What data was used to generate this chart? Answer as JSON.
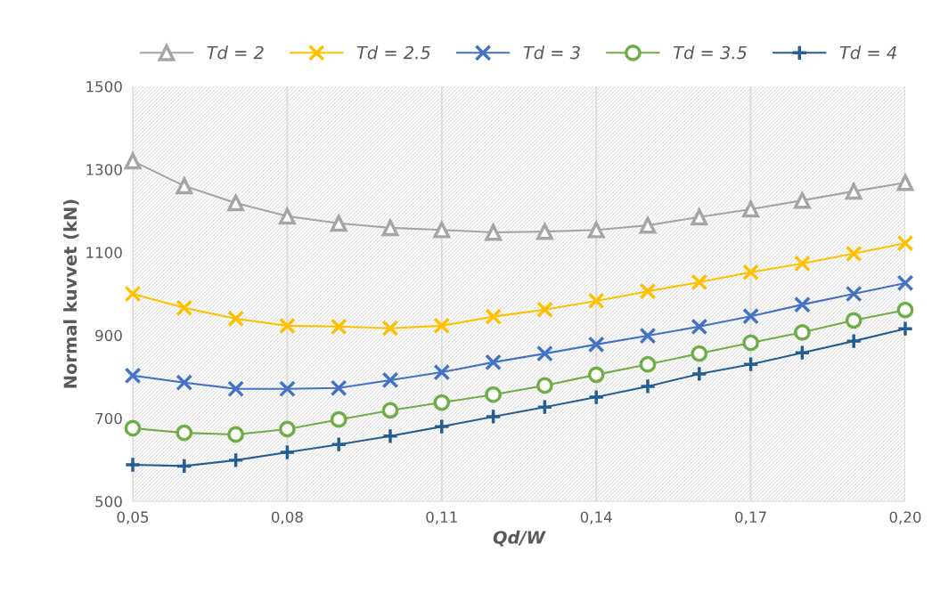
{
  "chart_data": {
    "type": "line",
    "xlabel": "Qd/W",
    "ylabel": "Normal kuvvet (kN)",
    "x": [
      0.05,
      0.06,
      0.07,
      0.08,
      0.09,
      0.1,
      0.11,
      0.12,
      0.13,
      0.14,
      0.15,
      0.16,
      0.17,
      0.18,
      0.19,
      0.2
    ],
    "series": [
      {
        "name": "Td = 2",
        "color": "#a5a5a5",
        "marker": "triangle",
        "values": [
          1320,
          1260,
          1219,
          1187,
          1170,
          1159,
          1154,
          1148,
          1150,
          1154,
          1165,
          1185,
          1204,
          1225,
          1247,
          1268
        ]
      },
      {
        "name": "Td = 2.5",
        "color": "#ffc000",
        "marker": "cross",
        "values": [
          1000,
          966,
          940,
          923,
          921,
          917,
          923,
          945,
          962,
          983,
          1006,
          1028,
          1052,
          1073,
          1097,
          1122
        ]
      },
      {
        "name": "Td = 3",
        "color": "#4472c4",
        "marker": "cross",
        "values": [
          803,
          786,
          771,
          771,
          773,
          792,
          811,
          835,
          856,
          878,
          899,
          921,
          946,
          974,
          1000,
          1026
        ]
      },
      {
        "name": "Td = 3.5",
        "color": "#70ad47",
        "marker": "circle",
        "values": [
          676,
          665,
          661,
          674,
          697,
          719,
          738,
          757,
          779,
          805,
          830,
          856,
          882,
          907,
          936,
          961
        ]
      },
      {
        "name": "Td = 4",
        "color": "#255e91",
        "marker": "plus",
        "values": [
          588,
          585,
          599,
          618,
          637,
          657,
          680,
          704,
          727,
          751,
          777,
          807,
          830,
          858,
          886,
          916
        ]
      }
    ],
    "xlim": [
      0.05,
      0.2
    ],
    "xticks": [
      {
        "value": 0.05,
        "label": "0,05"
      },
      {
        "value": 0.08,
        "label": "0,08"
      },
      {
        "value": 0.11,
        "label": "0,11"
      },
      {
        "value": 0.14,
        "label": "0,14"
      },
      {
        "value": 0.17,
        "label": "0,17"
      },
      {
        "value": 0.2,
        "label": "0,20"
      }
    ],
    "ylim": [
      500,
      1500
    ],
    "yticks": [
      500,
      700,
      900,
      1100,
      1300,
      1500
    ],
    "grid": "x",
    "legend": "top",
    "line_style": "solid"
  }
}
